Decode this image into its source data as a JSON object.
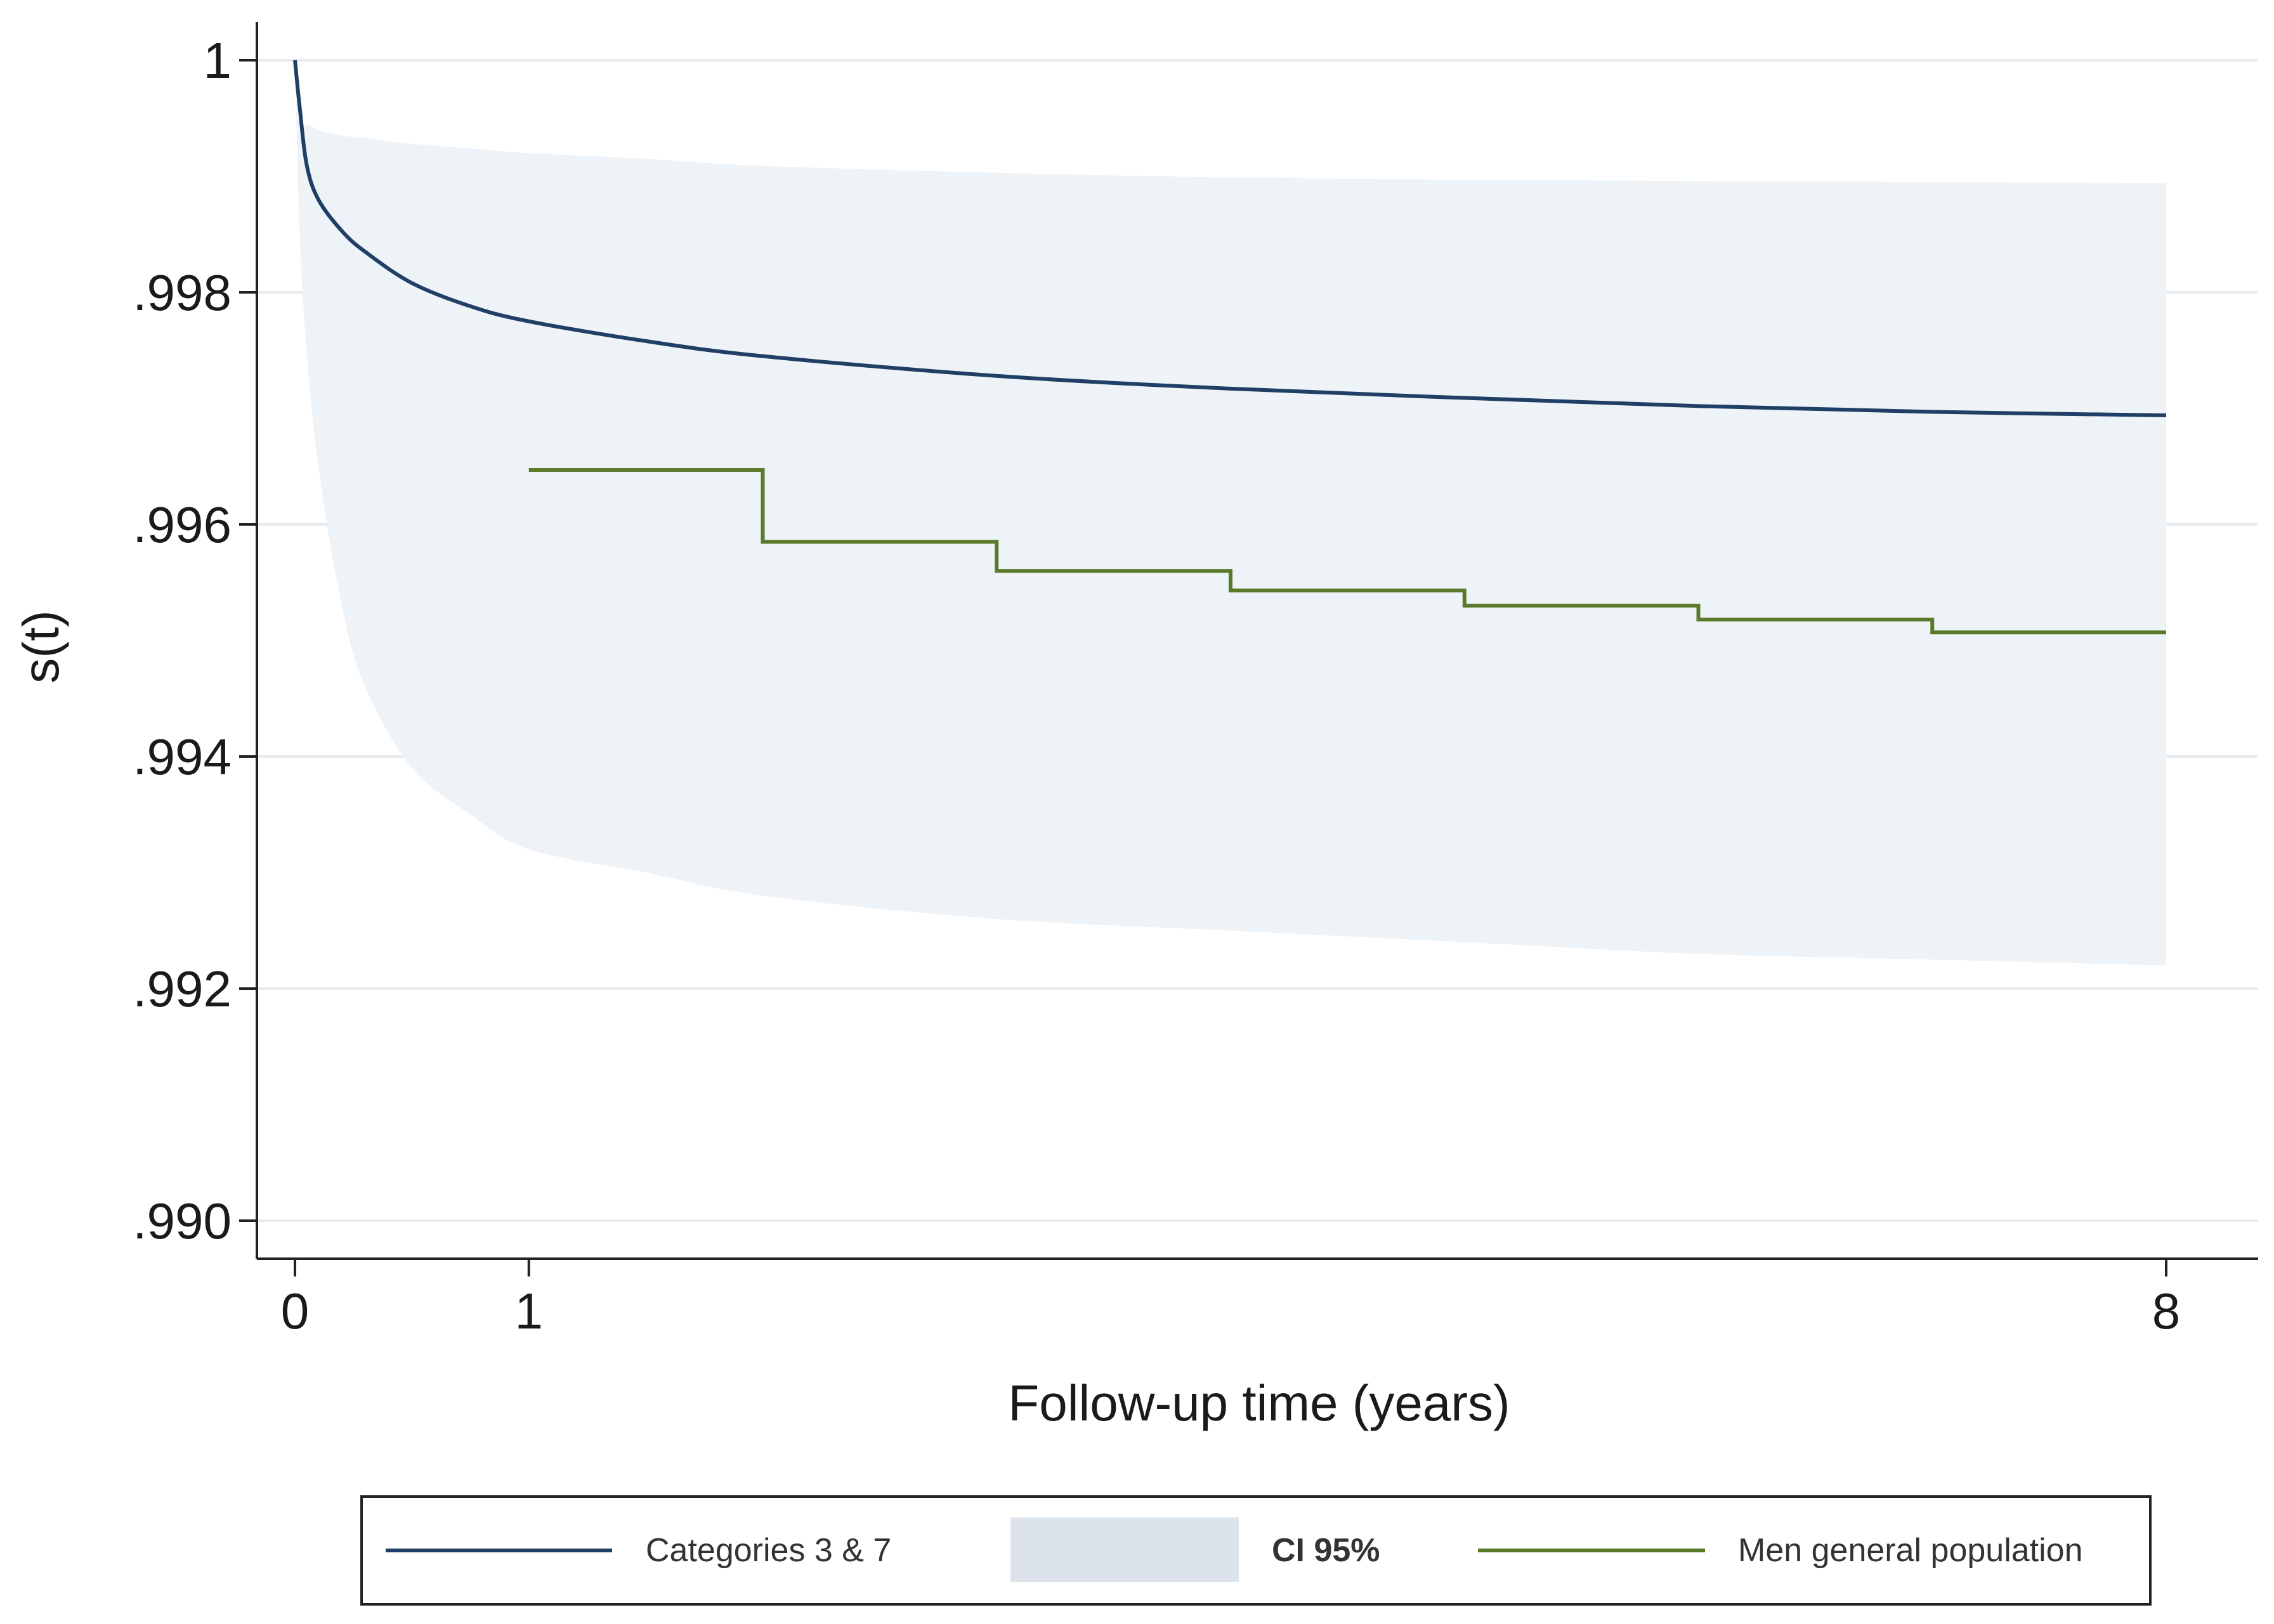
{
  "chart_data": {
    "type": "line",
    "title": "",
    "xlabel": "Follow-up time (years)",
    "ylabel": "s(t)",
    "xlim": [
      0,
      8
    ],
    "ylim": [
      0.99,
      1.0
    ],
    "x_ticks": [
      {
        "value": 0,
        "label": "0"
      },
      {
        "value": 1,
        "label": "1"
      },
      {
        "value": 8,
        "label": "8"
      }
    ],
    "y_ticks": [
      {
        "value": 1.0,
        "label": "1"
      },
      {
        "value": 0.998,
        "label": ".998"
      },
      {
        "value": 0.996,
        "label": ".996"
      },
      {
        "value": 0.994,
        "label": ".994"
      },
      {
        "value": 0.992,
        "label": ".992"
      },
      {
        "value": 0.99,
        "label": ".990"
      }
    ],
    "grid": "horizontal",
    "legend_position": "bottom",
    "colors": {
      "categories": "#1f3f66",
      "ci_band": "#eef3f8",
      "ci_legend": "#dde3ea",
      "general_population": "#5a7a2a",
      "grid": "#e6ebf0",
      "axis": "#222222"
    },
    "series": [
      {
        "name": "Categories 3 & 7",
        "kind": "line",
        "x": [
          0,
          0.02,
          0.05,
          0.1,
          0.2,
          0.3,
          0.5,
          0.75,
          1.0,
          1.5,
          2,
          3,
          4,
          5,
          6,
          7,
          8
        ],
        "y": [
          1.0,
          0.9996,
          0.9991,
          0.9988,
          0.99853,
          0.99835,
          0.99808,
          0.99788,
          0.99775,
          0.99758,
          0.99745,
          0.99728,
          0.99717,
          0.99709,
          0.99702,
          0.99697,
          0.99694
        ]
      },
      {
        "name": "CI 95%",
        "kind": "band",
        "x": [
          0,
          0.02,
          0.05,
          0.1,
          0.2,
          0.3,
          0.5,
          0.75,
          1.0,
          1.5,
          2,
          3,
          4,
          5,
          6,
          7,
          8
        ],
        "upper": [
          1.0,
          0.9994,
          0.99945,
          0.9994,
          0.99935,
          0.99933,
          0.99928,
          0.99924,
          0.9992,
          0.99915,
          0.99909,
          0.99903,
          0.99899,
          0.99897,
          0.99896,
          0.99895,
          0.99894
        ],
        "lower": [
          1.0,
          0.9985,
          0.9975,
          0.9965,
          0.9953,
          0.9946,
          0.9939,
          0.9935,
          0.9932,
          0.993,
          0.9928,
          0.9926,
          0.9925,
          0.9924,
          0.9923,
          0.99225,
          0.9922
        ]
      },
      {
        "name": "Men general population",
        "kind": "step",
        "x": [
          1,
          2,
          3,
          4,
          5,
          6,
          7,
          8
        ],
        "y": [
          0.99647,
          0.99585,
          0.9956,
          0.99543,
          0.9953,
          0.99518,
          0.99507,
          0.99507
        ]
      }
    ],
    "legend": [
      {
        "label": "Categories 3 & 7",
        "symbol": "line"
      },
      {
        "label": "CI 95%",
        "symbol": "box"
      },
      {
        "label": "Men general population",
        "symbol": "line"
      }
    ]
  }
}
